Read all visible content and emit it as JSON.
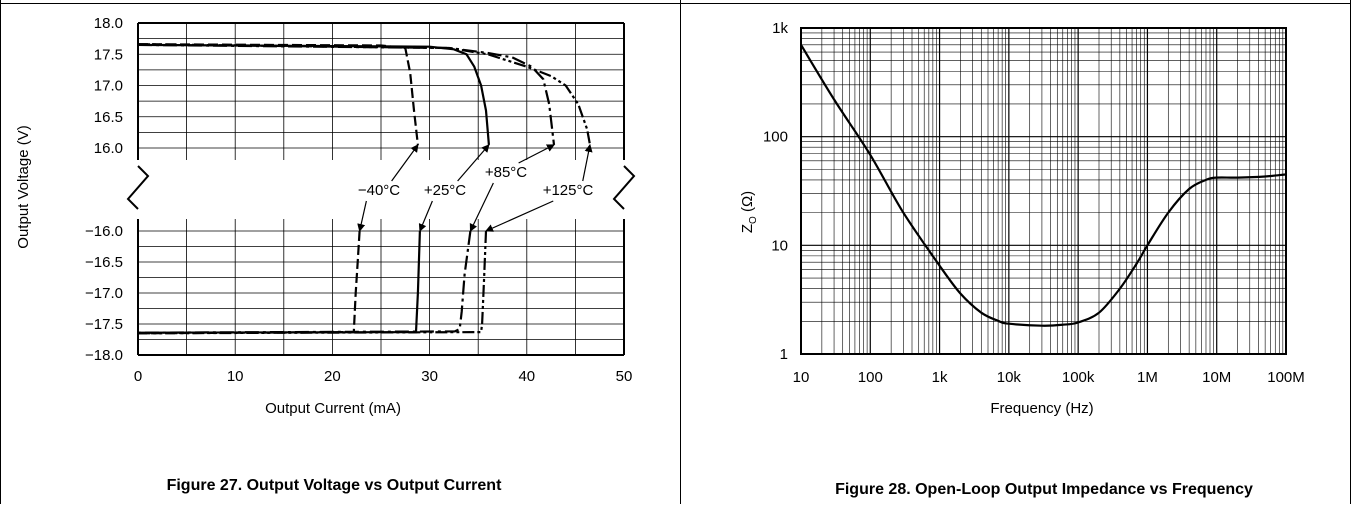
{
  "chart_data": [
    {
      "type": "line",
      "title": "Figure 27. Output Voltage vs Output Current",
      "xlabel": "Output Current (mA)",
      "ylabel": "Output Voltage (V)",
      "xlim": [
        0,
        50
      ],
      "x_ticks": [
        "0",
        "10",
        "20",
        "30",
        "40",
        "50"
      ],
      "y_ticks_top": [
        "18.0",
        "17.5",
        "17.0",
        "16.5",
        "16.0"
      ],
      "y_ticks_bottom": [
        "−16.0",
        "−16.5",
        "−17.0",
        "−17.5",
        "−18.0"
      ],
      "ylim_top": [
        16.0,
        18.0
      ],
      "ylim_bottom": [
        -18.0,
        -16.0
      ],
      "broken_y_axis": true,
      "grid": true,
      "series": [
        {
          "name": "−40°C",
          "dash": "long-dash",
          "top": [
            [
              0,
              17.66
            ],
            [
              25,
              17.64
            ],
            [
              27.5,
              17.6
            ],
            [
              28.0,
              17.2
            ],
            [
              28.4,
              16.6
            ],
            [
              28.8,
              16.05
            ]
          ],
          "bottom": [
            [
              22.8,
              -16.0
            ],
            [
              22.6,
              -16.5
            ],
            [
              22.4,
              -17.0
            ],
            [
              22.2,
              -17.63
            ],
            [
              0,
              -17.65
            ]
          ]
        },
        {
          "name": "+25°C",
          "dash": "solid",
          "top": [
            [
              0,
              17.65
            ],
            [
              30,
              17.62
            ],
            [
              32.5,
              17.58
            ],
            [
              33.8,
              17.5
            ],
            [
              34.6,
              17.3
            ],
            [
              35.3,
              17.0
            ],
            [
              35.8,
              16.6
            ],
            [
              36.1,
              16.05
            ]
          ],
          "bottom": [
            [
              29.0,
              -16.0
            ],
            [
              28.8,
              -17.0
            ],
            [
              28.6,
              -17.63
            ],
            [
              0,
              -17.64
            ]
          ]
        },
        {
          "name": "+85°C",
          "dash": "dash-dot",
          "top": [
            [
              0,
              17.65
            ],
            [
              32,
              17.6
            ],
            [
              36,
              17.52
            ],
            [
              38.5,
              17.45
            ],
            [
              40.5,
              17.3
            ],
            [
              41.7,
              17.1
            ],
            [
              42.3,
              16.7
            ],
            [
              42.8,
              16.05
            ]
          ],
          "bottom": [
            [
              34.2,
              -16.0
            ],
            [
              33.6,
              -16.7
            ],
            [
              33.3,
              -17.3
            ],
            [
              33.1,
              -17.58
            ],
            [
              32.6,
              -17.62
            ],
            [
              0,
              -17.64
            ]
          ]
        },
        {
          "name": "+125°C",
          "dash": "dash-dot-dot",
          "top": [
            [
              0,
              17.66
            ],
            [
              32,
              17.6
            ],
            [
              36,
              17.5
            ],
            [
              40,
              17.3
            ],
            [
              42.5,
              17.15
            ],
            [
              44,
              17.0
            ],
            [
              45.3,
              16.7
            ],
            [
              46.2,
              16.3
            ],
            [
              46.5,
              16.05
            ]
          ],
          "bottom": [
            [
              35.8,
              -16.0
            ],
            [
              35.6,
              -16.8
            ],
            [
              35.4,
              -17.5
            ],
            [
              35.3,
              -17.63
            ],
            [
              0,
              -17.65
            ]
          ]
        }
      ],
      "annotations": [
        {
          "text": "−40°C",
          "x": 24.5,
          "y": "break",
          "points_to": [
            [
              28.8,
              16.05
            ],
            [
              22.8,
              -16.0
            ]
          ]
        },
        {
          "text": "+25°C",
          "x": 31.5,
          "y": "break",
          "points_to": [
            [
              36.1,
              16.05
            ],
            [
              29.0,
              -16.0
            ]
          ]
        },
        {
          "text": "+85°C",
          "x": 37.5,
          "y": "break",
          "points_to": [
            [
              42.8,
              16.05
            ],
            [
              34.2,
              -16.0
            ]
          ]
        },
        {
          "text": "+125°C",
          "x": 44.5,
          "y": "break",
          "points_to": [
            [
              46.5,
              16.05
            ],
            [
              35.8,
              -16.0
            ]
          ]
        }
      ]
    },
    {
      "type": "line",
      "title": "Figure 28.  Open-Loop Output Impedance vs Frequency",
      "xlabel": "Frequency (Hz)",
      "ylabel_main": "Z",
      "ylabel_sub": "O",
      "ylabel_unit": " (Ω)",
      "x_scale": "log",
      "y_scale": "log",
      "xlim": [
        10,
        100000000
      ],
      "ylim": [
        1,
        1000
      ],
      "x_ticks": [
        {
          "value": 10,
          "label": "10"
        },
        {
          "value": 100,
          "label": "100"
        },
        {
          "value": 1000,
          "label": "1k"
        },
        {
          "value": 10000,
          "label": "10k"
        },
        {
          "value": 100000,
          "label": "100k"
        },
        {
          "value": 1000000,
          "label": "1M"
        },
        {
          "value": 10000000,
          "label": "10M"
        },
        {
          "value": 100000000,
          "label": "100M"
        }
      ],
      "y_ticks": [
        {
          "value": 1,
          "label": "1"
        },
        {
          "value": 10,
          "label": "10"
        },
        {
          "value": 100,
          "label": "100"
        },
        {
          "value": 1000,
          "label": "1k"
        }
      ],
      "grid": true,
      "x": [
        10,
        30,
        100,
        300,
        1000,
        2000,
        4000,
        7000,
        10000,
        30000,
        60000,
        100000,
        200000,
        400000,
        700000,
        1000000,
        2000000,
        4000000,
        7000000,
        10000000,
        20000000,
        50000000,
        100000000
      ],
      "y": [
        700,
        220,
        68,
        20,
        6.5,
        3.6,
        2.4,
        2.02,
        1.9,
        1.82,
        1.86,
        1.95,
        2.4,
        4.0,
        6.8,
        10,
        20,
        33,
        40,
        42,
        42,
        43,
        45
      ]
    }
  ]
}
